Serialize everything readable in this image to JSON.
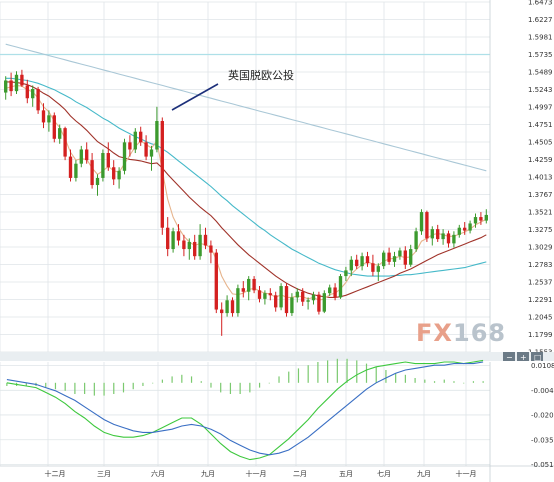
{
  "chart_data": [
    {
      "type": "candlestick",
      "title": "",
      "annotation": "英国脱欧公投",
      "watermark": "FX168",
      "y_ticks": [
        "1.6473",
        "1.6227",
        "1.5981",
        "1.5735",
        "1.5489",
        "1.5243",
        "1.4997",
        "1.4751",
        "1.4505",
        "1.4259",
        "1.4013",
        "1.3767",
        "1.3521",
        "1.3275",
        "1.3029",
        "1.2783",
        "1.2537",
        "1.2291",
        "1.2045",
        "1.1799",
        "1.1553"
      ],
      "ylim": [
        1.1553,
        1.6473
      ],
      "x_labels": [
        "十二月",
        "三月",
        "六月",
        "九月",
        "十一月",
        "二月",
        "五月",
        "七月",
        "九月",
        "十一月"
      ],
      "colors": {
        "up": "#3c9a2e",
        "down": "#d42020",
        "ma_fast": "#e6b48c",
        "ma_mid": "#a0332a",
        "ma_slow": "#46b9c9",
        "ma_long": "#a9c7d6",
        "hline": "#aee0e8"
      },
      "reference_line": 1.5735,
      "candles": [
        [
          1.52,
          1.543,
          1.51,
          1.537
        ],
        [
          1.537,
          1.548,
          1.515,
          1.522
        ],
        [
          1.522,
          1.55,
          1.518,
          1.545
        ],
        [
          1.545,
          1.552,
          1.528,
          1.53
        ],
        [
          1.53,
          1.538,
          1.505,
          1.512
        ],
        [
          1.512,
          1.53,
          1.5,
          1.525
        ],
        [
          1.525,
          1.528,
          1.49,
          1.495
        ],
        [
          1.495,
          1.505,
          1.47,
          1.478
        ],
        [
          1.478,
          1.495,
          1.465,
          1.488
        ],
        [
          1.488,
          1.492,
          1.45,
          1.455
        ],
        [
          1.455,
          1.475,
          1.448,
          1.47
        ],
        [
          1.47,
          1.472,
          1.425,
          1.43
        ],
        [
          1.43,
          1.44,
          1.395,
          1.4
        ],
        [
          1.4,
          1.425,
          1.395,
          1.42
        ],
        [
          1.42,
          1.445,
          1.415,
          1.44
        ],
        [
          1.44,
          1.45,
          1.42,
          1.425
        ],
        [
          1.425,
          1.435,
          1.385,
          1.39
        ],
        [
          1.39,
          1.405,
          1.375,
          1.4
        ],
        [
          1.4,
          1.44,
          1.395,
          1.435
        ],
        [
          1.435,
          1.45,
          1.41,
          1.415
        ],
        [
          1.415,
          1.425,
          1.39,
          1.398
        ],
        [
          1.398,
          1.415,
          1.385,
          1.41
        ],
        [
          1.41,
          1.455,
          1.405,
          1.45
        ],
        [
          1.45,
          1.46,
          1.43,
          1.44
        ],
        [
          1.44,
          1.47,
          1.435,
          1.465
        ],
        [
          1.465,
          1.472,
          1.445,
          1.45
        ],
        [
          1.45,
          1.46,
          1.425,
          1.43
        ],
        [
          1.43,
          1.445,
          1.41,
          1.44
        ],
        [
          1.44,
          1.5,
          1.436,
          1.48
        ],
        [
          1.48,
          1.485,
          1.32,
          1.33
        ],
        [
          1.33,
          1.345,
          1.29,
          1.3
        ],
        [
          1.3,
          1.33,
          1.295,
          1.325
        ],
        [
          1.325,
          1.335,
          1.305,
          1.312
        ],
        [
          1.312,
          1.32,
          1.29,
          1.3
        ],
        [
          1.3,
          1.315,
          1.285,
          1.31
        ],
        [
          1.31,
          1.32,
          1.285,
          1.29
        ],
        [
          1.29,
          1.335,
          1.285,
          1.32
        ],
        [
          1.32,
          1.33,
          1.3,
          1.305
        ],
        [
          1.305,
          1.312,
          1.28,
          1.295
        ],
        [
          1.295,
          1.3,
          1.21,
          1.215
        ],
        [
          1.215,
          1.225,
          1.178,
          1.21
        ],
        [
          1.21,
          1.235,
          1.205,
          1.228
        ],
        [
          1.228,
          1.232,
          1.205,
          1.21
        ],
        [
          1.21,
          1.25,
          1.205,
          1.245
        ],
        [
          1.245,
          1.255,
          1.232,
          1.24
        ],
        [
          1.24,
          1.262,
          1.228,
          1.258
        ],
        [
          1.258,
          1.262,
          1.238,
          1.242
        ],
        [
          1.242,
          1.248,
          1.225,
          1.23
        ],
        [
          1.23,
          1.242,
          1.222,
          1.238
        ],
        [
          1.238,
          1.245,
          1.228,
          1.235
        ],
        [
          1.235,
          1.24,
          1.212,
          1.218
        ],
        [
          1.218,
          1.252,
          1.214,
          1.248
        ],
        [
          1.248,
          1.252,
          1.205,
          1.21
        ],
        [
          1.21,
          1.238,
          1.206,
          1.232
        ],
        [
          1.232,
          1.245,
          1.225,
          1.24
        ],
        [
          1.24,
          1.245,
          1.22,
          1.226
        ],
        [
          1.226,
          1.232,
          1.215,
          1.228
        ],
        [
          1.228,
          1.24,
          1.222,
          1.236
        ],
        [
          1.236,
          1.24,
          1.208,
          1.212
        ],
        [
          1.212,
          1.242,
          1.21,
          1.238
        ],
        [
          1.238,
          1.25,
          1.234,
          1.246
        ],
        [
          1.246,
          1.252,
          1.228,
          1.232
        ],
        [
          1.232,
          1.265,
          1.23,
          1.262
        ],
        [
          1.262,
          1.275,
          1.255,
          1.27
        ],
        [
          1.27,
          1.29,
          1.262,
          1.285
        ],
        [
          1.285,
          1.292,
          1.272,
          1.276
        ],
        [
          1.276,
          1.295,
          1.27,
          1.29
        ],
        [
          1.29,
          1.296,
          1.275,
          1.28
        ],
        [
          1.28,
          1.292,
          1.262,
          1.268
        ],
        [
          1.268,
          1.28,
          1.255,
          1.276
        ],
        [
          1.276,
          1.298,
          1.272,
          1.295
        ],
        [
          1.295,
          1.302,
          1.278,
          1.282
        ],
        [
          1.282,
          1.296,
          1.275,
          1.29
        ],
        [
          1.29,
          1.302,
          1.285,
          1.298
        ],
        [
          1.298,
          1.304,
          1.272,
          1.278
        ],
        [
          1.278,
          1.306,
          1.275,
          1.3
        ],
        [
          1.3,
          1.33,
          1.296,
          1.325
        ],
        [
          1.325,
          1.356,
          1.32,
          1.352
        ],
        [
          1.352,
          1.354,
          1.31,
          1.315
        ],
        [
          1.315,
          1.332,
          1.305,
          1.328
        ],
        [
          1.328,
          1.334,
          1.31,
          1.314
        ],
        [
          1.314,
          1.328,
          1.306,
          1.322
        ],
        [
          1.322,
          1.326,
          1.302,
          1.308
        ],
        [
          1.308,
          1.325,
          1.302,
          1.32
        ],
        [
          1.32,
          1.334,
          1.316,
          1.33
        ],
        [
          1.33,
          1.338,
          1.32,
          1.326
        ],
        [
          1.326,
          1.34,
          1.322,
          1.336
        ],
        [
          1.336,
          1.35,
          1.33,
          1.345
        ],
        [
          1.345,
          1.352,
          1.334,
          1.34
        ],
        [
          1.34,
          1.356,
          1.336,
          1.348
        ]
      ],
      "moving_averages": {
        "ma_fast": [
          1.526,
          1.528,
          1.53,
          1.529,
          1.524,
          1.521,
          1.512,
          1.5,
          1.493,
          1.48,
          1.471,
          1.455,
          1.436,
          1.425,
          1.427,
          1.426,
          1.414,
          1.405,
          1.41,
          1.416,
          1.41,
          1.408,
          1.42,
          1.432,
          1.444,
          1.452,
          1.447,
          1.442,
          1.452,
          1.41,
          1.37,
          1.345,
          1.33,
          1.318,
          1.31,
          1.305,
          1.308,
          1.306,
          1.302,
          1.285,
          1.262,
          1.248,
          1.237,
          1.236,
          1.238,
          1.243,
          1.245,
          1.241,
          1.238,
          1.237,
          1.232,
          1.236,
          1.232,
          1.232,
          1.234,
          1.233,
          1.23,
          1.232,
          1.228,
          1.23,
          1.236,
          1.238,
          1.244,
          1.253,
          1.265,
          1.272,
          1.278,
          1.282,
          1.279,
          1.277,
          1.283,
          1.286,
          1.287,
          1.29,
          1.288,
          1.289,
          1.297,
          1.311,
          1.315,
          1.32,
          1.322,
          1.32,
          1.318,
          1.318,
          1.321,
          1.324,
          1.328,
          1.334,
          1.338,
          1.342
        ],
        "ma_mid": [
          1.535,
          1.535,
          1.534,
          1.533,
          1.531,
          1.528,
          1.524,
          1.519,
          1.515,
          1.509,
          1.503,
          1.496,
          1.487,
          1.48,
          1.474,
          1.467,
          1.459,
          1.451,
          1.446,
          1.441,
          1.435,
          1.43,
          1.428,
          1.426,
          1.425,
          1.424,
          1.422,
          1.42,
          1.421,
          1.414,
          1.405,
          1.397,
          1.389,
          1.381,
          1.373,
          1.366,
          1.359,
          1.353,
          1.347,
          1.339,
          1.33,
          1.322,
          1.314,
          1.306,
          1.299,
          1.292,
          1.286,
          1.28,
          1.274,
          1.268,
          1.262,
          1.257,
          1.252,
          1.248,
          1.244,
          1.241,
          1.238,
          1.236,
          1.234,
          1.233,
          1.232,
          1.232,
          1.233,
          1.235,
          1.238,
          1.241,
          1.244,
          1.247,
          1.25,
          1.253,
          1.256,
          1.259,
          1.262,
          1.266,
          1.269,
          1.272,
          1.276,
          1.28,
          1.284,
          1.288,
          1.292,
          1.295,
          1.298,
          1.301,
          1.304,
          1.307,
          1.31,
          1.313,
          1.316,
          1.32
        ],
        "ma_slow": [
          1.54,
          1.54,
          1.539,
          1.538,
          1.537,
          1.535,
          1.533,
          1.53,
          1.527,
          1.524,
          1.52,
          1.516,
          1.512,
          1.507,
          1.503,
          1.499,
          1.494,
          1.489,
          1.484,
          1.48,
          1.475,
          1.47,
          1.466,
          1.462,
          1.458,
          1.455,
          1.451,
          1.448,
          1.446,
          1.441,
          1.436,
          1.43,
          1.424,
          1.418,
          1.412,
          1.406,
          1.4,
          1.394,
          1.388,
          1.381,
          1.374,
          1.368,
          1.361,
          1.355,
          1.349,
          1.343,
          1.337,
          1.331,
          1.326,
          1.32,
          1.315,
          1.31,
          1.305,
          1.3,
          1.296,
          1.292,
          1.288,
          1.284,
          1.28,
          1.277,
          1.274,
          1.271,
          1.269,
          1.267,
          1.265,
          1.264,
          1.263,
          1.262,
          1.262,
          1.262,
          1.262,
          1.262,
          1.263,
          1.263,
          1.264,
          1.264,
          1.265,
          1.266,
          1.267,
          1.268,
          1.269,
          1.27,
          1.271,
          1.272,
          1.273,
          1.274,
          1.276,
          1.278,
          1.28,
          1.282
        ],
        "ma_long": [
          1.588,
          1.586,
          1.584,
          1.582,
          1.58,
          1.578,
          1.576,
          1.574,
          1.572,
          1.57,
          1.568,
          1.566,
          1.564,
          1.562,
          1.56,
          1.558,
          1.556,
          1.554,
          1.552,
          1.55,
          1.548,
          1.546,
          1.544,
          1.542,
          1.54,
          1.538,
          1.536,
          1.534,
          1.532,
          1.53,
          1.528,
          1.526,
          1.524,
          1.522,
          1.52,
          1.518,
          1.516,
          1.514,
          1.512,
          1.51,
          1.508,
          1.506,
          1.504,
          1.502,
          1.5,
          1.498,
          1.496,
          1.494,
          1.492,
          1.49,
          1.488,
          1.486,
          1.484,
          1.482,
          1.48,
          1.478,
          1.476,
          1.474,
          1.472,
          1.47,
          1.468,
          1.466,
          1.464,
          1.462,
          1.46,
          1.458,
          1.456,
          1.454,
          1.452,
          1.45,
          1.448,
          1.446,
          1.444,
          1.442,
          1.44,
          1.438,
          1.436,
          1.434,
          1.432,
          1.43,
          1.428,
          1.426,
          1.424,
          1.422,
          1.42,
          1.418,
          1.416,
          1.414,
          1.412,
          1.41
        ]
      }
    },
    {
      "type": "line",
      "title": "",
      "y_ticks": [
        "0.0108",
        "-0.0047",
        "-0.0201",
        "-0.0356",
        "-0.0510"
      ],
      "ylim": [
        -0.052,
        0.013
      ],
      "series": [
        {
          "values": [
            0.0,
            -0.001,
            -0.002,
            -0.003,
            -0.006,
            -0.009,
            -0.013,
            -0.018,
            -0.022,
            -0.027,
            -0.031,
            -0.033,
            -0.034,
            -0.034,
            -0.033,
            -0.031,
            -0.028,
            -0.025,
            -0.022,
            -0.022,
            -0.026,
            -0.032,
            -0.038,
            -0.043,
            -0.046,
            -0.048,
            -0.047,
            -0.045,
            -0.04,
            -0.035,
            -0.029,
            -0.023,
            -0.016,
            -0.01,
            -0.004,
            0.001,
            0.005,
            0.008,
            0.01,
            0.011,
            0.012,
            0.013,
            0.012,
            0.012,
            0.012,
            0.013,
            0.013,
            0.012,
            0.013,
            0.014
          ]
        },
        {
          "values": [
            0.002,
            0.001,
            0.0,
            -0.001,
            -0.003,
            -0.005,
            -0.008,
            -0.011,
            -0.015,
            -0.019,
            -0.023,
            -0.026,
            -0.028,
            -0.03,
            -0.031,
            -0.031,
            -0.03,
            -0.029,
            -0.027,
            -0.026,
            -0.027,
            -0.029,
            -0.032,
            -0.036,
            -0.039,
            -0.042,
            -0.044,
            -0.045,
            -0.044,
            -0.042,
            -0.038,
            -0.034,
            -0.029,
            -0.024,
            -0.019,
            -0.014,
            -0.009,
            -0.004,
            0.0,
            0.003,
            0.006,
            0.008,
            0.009,
            0.01,
            0.011,
            0.011,
            0.012,
            0.012,
            0.012,
            0.013
          ]
        }
      ],
      "histogram": [
        -0.002,
        -0.002,
        -0.002,
        -0.002,
        -0.003,
        -0.004,
        -0.005,
        -0.007,
        -0.007,
        -0.008,
        -0.008,
        -0.007,
        -0.006,
        -0.004,
        -0.002,
        0.0,
        0.002,
        0.004,
        0.005,
        0.004,
        0.001,
        -0.003,
        -0.006,
        -0.007,
        -0.007,
        -0.006,
        -0.003,
        0.0,
        0.004,
        0.007,
        0.009,
        0.011,
        0.013,
        0.014,
        0.015,
        0.015,
        0.014,
        0.012,
        0.01,
        0.008,
        0.006,
        0.005,
        0.003,
        0.002,
        0.001,
        0.002,
        0.001,
        0.0,
        0.001,
        0.001
      ],
      "colors": {
        "line1": "#3ec83e",
        "line2": "#3a6fc4",
        "hist": "#7bc96f"
      }
    }
  ]
}
